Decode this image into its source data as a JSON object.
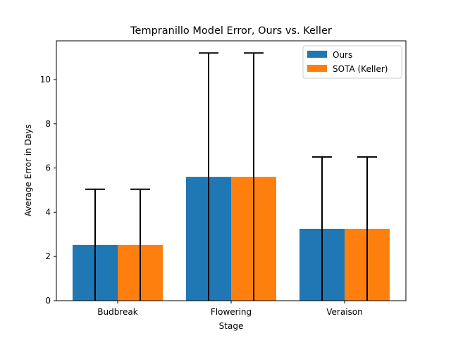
{
  "chart_data": {
    "type": "bar",
    "title": "Tempranillo Model Error, Ours vs. Keller",
    "xlabel": "Stage",
    "ylabel": "Average Error in Days",
    "categories": [
      "Budbreak",
      "Flowering",
      "Veraison"
    ],
    "series": [
      {
        "name": "Ours",
        "color": "#1f77b4",
        "values": [
          2.52,
          5.6,
          3.25
        ],
        "error": [
          2.52,
          5.6,
          3.25
        ]
      },
      {
        "name": "SOTA (Keller)",
        "color": "#ff7f0e",
        "values": [
          2.52,
          5.6,
          3.25
        ],
        "error": [
          2.52,
          5.6,
          3.25
        ]
      }
    ],
    "ylim": [
      0,
      11.75
    ],
    "yticks": [
      0,
      2,
      4,
      6,
      8,
      10
    ],
    "legend_position": "top-right",
    "grid": false
  }
}
